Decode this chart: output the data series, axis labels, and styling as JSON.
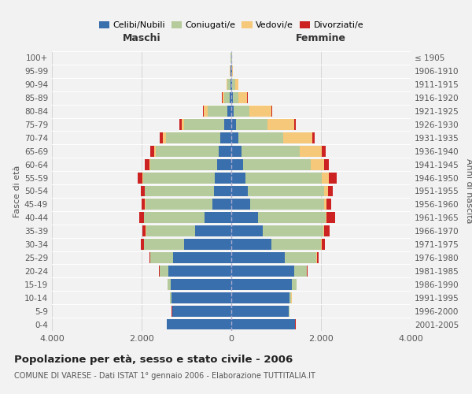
{
  "age_groups": [
    "0-4",
    "5-9",
    "10-14",
    "15-19",
    "20-24",
    "25-29",
    "30-34",
    "35-39",
    "40-44",
    "45-49",
    "50-54",
    "55-59",
    "60-64",
    "65-69",
    "70-74",
    "75-79",
    "80-84",
    "85-89",
    "90-94",
    "95-99",
    "100+"
  ],
  "birth_years": [
    "2001-2005",
    "1996-2000",
    "1991-1995",
    "1986-1990",
    "1981-1985",
    "1976-1980",
    "1971-1975",
    "1966-1970",
    "1961-1965",
    "1956-1960",
    "1951-1955",
    "1946-1950",
    "1941-1945",
    "1936-1940",
    "1931-1935",
    "1926-1930",
    "1921-1925",
    "1916-1920",
    "1911-1915",
    "1906-1910",
    "≤ 1905"
  ],
  "males_celibi": [
    1430,
    1310,
    1330,
    1350,
    1400,
    1300,
    1050,
    800,
    600,
    420,
    380,
    370,
    310,
    280,
    250,
    150,
    80,
    30,
    20,
    10,
    5
  ],
  "males_coniugati": [
    5,
    10,
    30,
    70,
    200,
    500,
    900,
    1100,
    1350,
    1500,
    1550,
    1600,
    1500,
    1400,
    1200,
    900,
    450,
    120,
    60,
    15,
    5
  ],
  "males_vedovi": [
    2,
    2,
    2,
    2,
    3,
    5,
    5,
    5,
    5,
    5,
    5,
    10,
    20,
    40,
    70,
    60,
    80,
    50,
    20,
    5,
    2
  ],
  "males_divorziati": [
    5,
    5,
    5,
    5,
    10,
    20,
    60,
    80,
    100,
    80,
    90,
    100,
    100,
    80,
    80,
    50,
    20,
    10,
    5,
    2,
    1
  ],
  "females_nubili": [
    1420,
    1280,
    1300,
    1350,
    1400,
    1200,
    900,
    700,
    600,
    420,
    370,
    320,
    270,
    220,
    150,
    100,
    60,
    30,
    20,
    10,
    5
  ],
  "females_coniugate": [
    5,
    15,
    40,
    100,
    280,
    700,
    1100,
    1350,
    1500,
    1650,
    1700,
    1700,
    1500,
    1300,
    1000,
    700,
    350,
    120,
    60,
    15,
    5
  ],
  "females_vedove": [
    3,
    3,
    3,
    3,
    5,
    10,
    15,
    20,
    30,
    50,
    80,
    150,
    300,
    500,
    650,
    600,
    480,
    200,
    80,
    15,
    5
  ],
  "females_divorziate": [
    5,
    5,
    5,
    5,
    10,
    30,
    80,
    120,
    180,
    100,
    120,
    180,
    100,
    80,
    60,
    30,
    15,
    10,
    5,
    2,
    1
  ],
  "colors_celibi": "#3a6fad",
  "colors_coniugati": "#b5cb9b",
  "colors_vedovi": "#f5c87a",
  "colors_divorziati": "#cc2222",
  "title": "Popolazione per età, sesso e stato civile - 2006",
  "subtitle": "COMUNE DI VARESE - Dati ISTAT 1° gennaio 2006 - Elaborazione TUTTITALIA.IT",
  "label_maschi": "Maschi",
  "label_femmine": "Femmine",
  "ylabel_left": "Fasce di età",
  "ylabel_right": "Anni di nascita",
  "legend_labels": [
    "Celibi/Nubili",
    "Coniugati/e",
    "Vedovi/e",
    "Divorziati/e"
  ],
  "xlim": 4000,
  "bg_color": "#f2f2f2",
  "xtick_labels": [
    "4.000",
    "2.000",
    "0",
    "2.000",
    "4.000"
  ]
}
